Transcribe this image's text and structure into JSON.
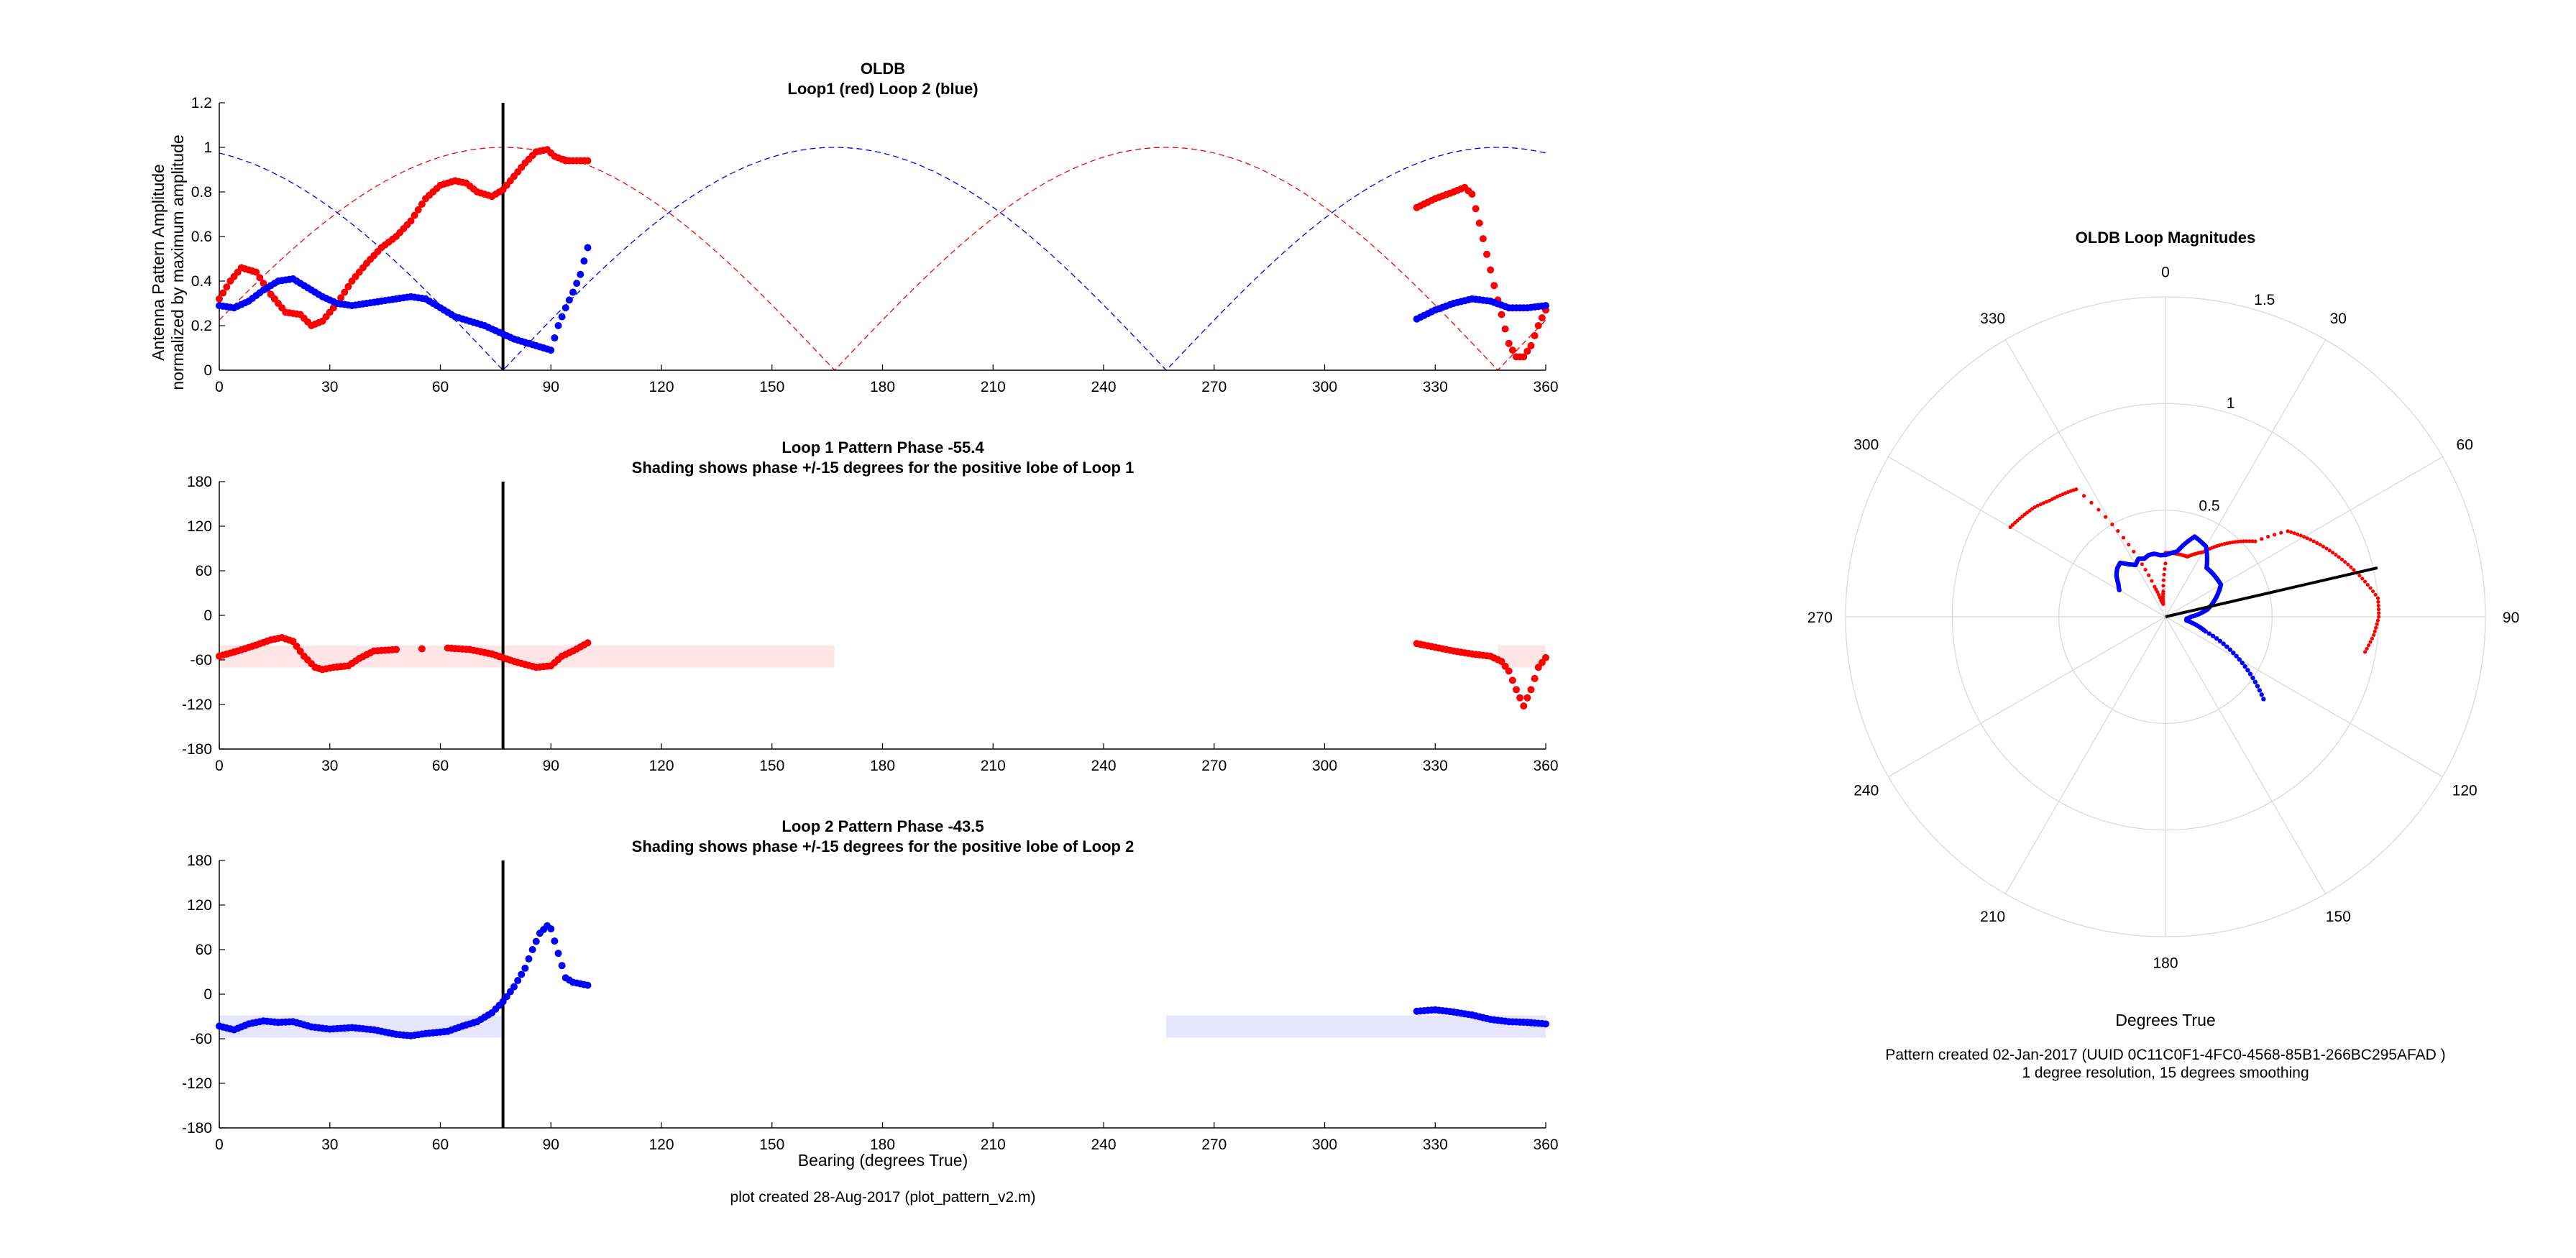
{
  "footer": {
    "plot_note": "plot created 28-Aug-2017 (plot_pattern_v2.m)",
    "pattern_note": "Pattern created 02-Jan-2017 (UUID 0C11C0F1-4FC0-4568-85B1-266BC295AFAD )",
    "resolution_note": "1 degree resolution, 15 degrees smoothing"
  },
  "colors": {
    "loop1": "#ff0000",
    "loop2": "#0000ff",
    "shade1": "#ffe5e5",
    "shade2": "#e5e5ff",
    "axis": "#000000",
    "grid": "#d9d9d9"
  },
  "chart_data": [
    {
      "type": "scatter",
      "title": "OLDB",
      "subtitle": "Loop1 (red) Loop 2 (blue)",
      "xlabel": "",
      "ylabel": "Antenna Pattern Amplitude",
      "ylabel2": "normalized by maximum amplitude",
      "xlim": [
        0,
        360
      ],
      "ylim": [
        0,
        1.2
      ],
      "xticks": [
        0,
        30,
        60,
        90,
        120,
        150,
        180,
        210,
        240,
        270,
        300,
        330,
        360
      ],
      "yticks": [
        0,
        0.2,
        0.4,
        0.6,
        0.8,
        1,
        1.2
      ],
      "ytick_labels": [
        "0",
        "0.2",
        "0.4",
        "0.6",
        "0.8",
        "1",
        "1.2"
      ],
      "vline_x": 77,
      "series": [
        {
          "color_key": "loop1",
          "x": [
            0,
            3,
            6,
            10,
            14,
            18,
            22,
            25,
            28,
            32,
            36,
            40,
            44,
            48,
            52,
            56,
            60,
            64,
            67,
            70,
            74,
            77,
            80,
            83,
            86,
            89,
            91,
            94,
            97,
            100,
            325,
            330,
            335,
            338,
            340,
            342,
            344,
            346,
            348,
            350,
            352,
            354,
            356,
            358,
            360
          ],
          "y": [
            0.32,
            0.4,
            0.46,
            0.44,
            0.34,
            0.26,
            0.25,
            0.2,
            0.22,
            0.3,
            0.4,
            0.48,
            0.55,
            0.6,
            0.67,
            0.77,
            0.83,
            0.85,
            0.84,
            0.8,
            0.78,
            0.81,
            0.87,
            0.93,
            0.98,
            0.99,
            0.96,
            0.94,
            0.94,
            0.94,
            0.73,
            0.77,
            0.8,
            0.82,
            0.79,
            0.66,
            0.52,
            0.38,
            0.25,
            0.12,
            0.06,
            0.06,
            0.11,
            0.2,
            0.27
          ]
        },
        {
          "color_key": "loop2",
          "x": [
            0,
            4,
            8,
            12,
            16,
            20,
            24,
            28,
            32,
            36,
            40,
            44,
            48,
            52,
            56,
            60,
            64,
            68,
            72,
            76,
            80,
            84,
            88,
            90,
            92,
            94,
            96,
            98,
            100,
            325,
            330,
            335,
            340,
            345,
            350,
            355,
            360
          ],
          "y": [
            0.29,
            0.28,
            0.31,
            0.36,
            0.4,
            0.41,
            0.37,
            0.33,
            0.3,
            0.29,
            0.3,
            0.31,
            0.32,
            0.33,
            0.32,
            0.28,
            0.24,
            0.22,
            0.2,
            0.17,
            0.14,
            0.12,
            0.1,
            0.09,
            0.2,
            0.28,
            0.35,
            0.43,
            0.55,
            0.23,
            0.27,
            0.3,
            0.32,
            0.31,
            0.28,
            0.28,
            0.29
          ]
        }
      ],
      "model_curves": [
        {
          "color_key": "loop1",
          "formula": "abs(cos(bearing - 77))",
          "center_deg": 77
        },
        {
          "color_key": "loop2",
          "formula": "abs(cos(bearing - 167))",
          "center_deg": 167
        }
      ]
    },
    {
      "type": "scatter",
      "title": "Loop 1 Pattern Phase -55.4",
      "subtitle": "Shading shows phase +/-15 degrees for the positive lobe of Loop 1",
      "xlabel": "",
      "xlim": [
        0,
        360
      ],
      "ylim": [
        -180,
        180
      ],
      "xticks": [
        0,
        30,
        60,
        90,
        120,
        150,
        180,
        210,
        240,
        270,
        300,
        330,
        360
      ],
      "yticks": [
        -180,
        -120,
        -60,
        0,
        60,
        120,
        180
      ],
      "vline_x": 77,
      "shading": [
        {
          "x": [
            0,
            167
          ],
          "y": [
            -70.4,
            -40.4
          ]
        },
        {
          "x": [
            347,
            360
          ],
          "y": [
            -70.4,
            -40.4
          ]
        }
      ],
      "series": [
        {
          "color_key": "loop1",
          "x": [
            0,
            5,
            10,
            14,
            17,
            20,
            23,
            26,
            28,
            31,
            35,
            38,
            42,
            48,
            55,
            62,
            68,
            74,
            80,
            86,
            90,
            93,
            96,
            100,
            325,
            330,
            335,
            340,
            345,
            348,
            350,
            352,
            354,
            356,
            358,
            360
          ],
          "y": [
            -55,
            -48,
            -40,
            -33,
            -30,
            -35,
            -55,
            -70,
            -73,
            -70,
            -68,
            -58,
            -48,
            -46,
            -45,
            -44,
            -46,
            -52,
            -62,
            -70,
            -68,
            -55,
            -48,
            -37,
            -38,
            -43,
            -48,
            -52,
            -55,
            -62,
            -75,
            -100,
            -122,
            -100,
            -70,
            -57
          ]
        }
      ]
    },
    {
      "type": "scatter",
      "title": "Loop 2 Pattern Phase -43.5",
      "subtitle": "Shading shows phase +/-15 degrees for the positive lobe of Loop 2",
      "xlabel": "Bearing (degrees True)",
      "xlim": [
        0,
        360
      ],
      "ylim": [
        -180,
        180
      ],
      "xticks": [
        0,
        30,
        60,
        90,
        120,
        150,
        180,
        210,
        240,
        270,
        300,
        330,
        360
      ],
      "yticks": [
        -180,
        -120,
        -60,
        0,
        60,
        120,
        180
      ],
      "vline_x": 77,
      "shading": [
        {
          "x": [
            0,
            77
          ],
          "y": [
            -58.5,
            -28.5
          ]
        },
        {
          "x": [
            257,
            360
          ],
          "y": [
            -58.5,
            -28.5
          ]
        }
      ],
      "series": [
        {
          "color_key": "loop2",
          "x": [
            0,
            4,
            8,
            12,
            16,
            20,
            25,
            30,
            36,
            42,
            48,
            52,
            56,
            62,
            66,
            70,
            74,
            77,
            80,
            83,
            85,
            87,
            89,
            90,
            92,
            94,
            96,
            100,
            325,
            330,
            335,
            340,
            345,
            350,
            355,
            360
          ],
          "y": [
            -43,
            -48,
            -40,
            -36,
            -38,
            -37,
            -44,
            -47,
            -45,
            -48,
            -54,
            -56,
            -53,
            -50,
            -43,
            -37,
            -25,
            -10,
            10,
            35,
            60,
            82,
            92,
            88,
            55,
            22,
            16,
            12,
            -23,
            -21,
            -24,
            -28,
            -34,
            -37,
            -38,
            -40
          ]
        }
      ]
    },
    {
      "type": "polar",
      "title": "OLDB Loop Magnitudes",
      "xlabel": "Degrees True",
      "rlim": [
        0,
        1.5
      ],
      "rticks": [
        0.5,
        1,
        1.5
      ],
      "rtick_labels": [
        "0.5",
        "1",
        "1.5"
      ],
      "theta_ticks": [
        0,
        30,
        60,
        90,
        120,
        150,
        180,
        210,
        240,
        270,
        300,
        330
      ],
      "theta_zero": "top",
      "theta_direction": "clockwise",
      "bearing_line": {
        "theta": 77,
        "r": 1.02
      },
      "series": [
        {
          "color_key": "loop1",
          "theta": [
            0,
            10,
            20,
            30,
            40,
            50,
            55,
            60,
            65,
            70,
            75,
            80,
            85,
            90,
            95,
            100,
            300,
            305,
            310,
            315,
            320,
            325,
            330,
            335,
            340,
            345,
            350,
            355,
            360
          ],
          "r": [
            0.3,
            0.3,
            0.3,
            0.35,
            0.45,
            0.55,
            0.7,
            0.75,
            0.8,
            0.85,
            0.9,
            0.95,
            1.0,
            1.0,
            0.98,
            0.95,
            0.84,
            0.82,
            0.8,
            0.77,
            0.75,
            0.73,
            0.5,
            0.3,
            0.15,
            0.08,
            0.06,
            0.12,
            0.25
          ]
        },
        {
          "color_key": "loop2",
          "theta": [
            0,
            10,
            20,
            30,
            40,
            50,
            60,
            70,
            80,
            90,
            95,
            100,
            105,
            110,
            115,
            120,
            125,
            130,
            300,
            305,
            310,
            315,
            320,
            325,
            330,
            335,
            340,
            345,
            350,
            355,
            360
          ],
          "r": [
            0.29,
            0.31,
            0.4,
            0.38,
            0.3,
            0.3,
            0.3,
            0.25,
            0.2,
            0.12,
            0.1,
            0.1,
            0.15,
            0.2,
            0.3,
            0.4,
            0.5,
            0.6,
            0.25,
            0.27,
            0.3,
            0.32,
            0.33,
            0.3,
            0.28,
            0.3,
            0.29,
            0.3,
            0.3,
            0.29,
            0.29
          ]
        }
      ]
    }
  ]
}
